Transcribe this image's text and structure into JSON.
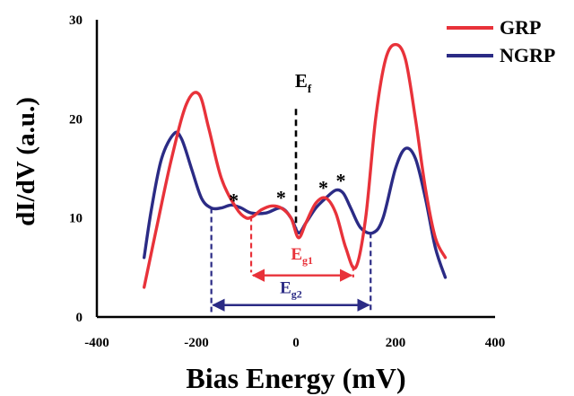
{
  "chart_data": {
    "type": "line",
    "title": "",
    "xlabel": "Bias Energy (mV)",
    "ylabel": "dI/dV (a.u.)",
    "xlim": [
      -400,
      400
    ],
    "ylim": [
      0,
      30
    ],
    "xticks": [
      "-400",
      "-200",
      "0",
      "200",
      "400"
    ],
    "yticks": [
      "0",
      "10",
      "20",
      "30"
    ],
    "legend_position": "top-right",
    "series": [
      {
        "name": "GRP",
        "color": "#e8323a",
        "x": [
          -305,
          -280,
          -250,
          -220,
          -195,
          -175,
          -150,
          -120,
          -100,
          -85,
          -70,
          -50,
          -30,
          -10,
          5,
          20,
          40,
          60,
          80,
          100,
          120,
          140,
          160,
          180,
          200,
          220,
          240,
          260,
          280,
          300
        ],
        "y": [
          3,
          9,
          16,
          21.5,
          22.5,
          19,
          14,
          11,
          10,
          10.2,
          10.8,
          11.2,
          11,
          10,
          8,
          9.5,
          11.5,
          12,
          10.5,
          7,
          5,
          10,
          20,
          26,
          27.5,
          26,
          20,
          13,
          8,
          6
        ]
      },
      {
        "name": "NGRP",
        "color": "#2b2b85",
        "x": [
          -305,
          -290,
          -270,
          -245,
          -230,
          -210,
          -190,
          -170,
          -150,
          -130,
          -110,
          -90,
          -60,
          -30,
          -10,
          5,
          20,
          40,
          60,
          80,
          95,
          110,
          130,
          155,
          175,
          200,
          220,
          240,
          260,
          280,
          300
        ],
        "y": [
          6,
          11,
          16,
          18.5,
          18,
          15,
          12,
          11,
          11,
          11.3,
          11,
          10.5,
          10.5,
          11,
          10,
          8.5,
          9.5,
          11,
          12,
          12.8,
          12.5,
          11,
          9,
          8.5,
          10,
          15,
          17,
          16,
          12,
          7,
          4
        ]
      }
    ],
    "annotations": {
      "ef_label": "E",
      "ef_sub": "f",
      "eg1_label": "E",
      "eg1_sub": "g1",
      "eg2_label": "E",
      "eg2_sub": "g2",
      "stars": [
        "*",
        "*",
        "*",
        "*"
      ],
      "eg1_range": [
        -90,
        115
      ],
      "eg2_range": [
        -170,
        150
      ],
      "star_positions": [
        [
          -125,
          12
        ],
        [
          -30,
          12.3
        ],
        [
          55,
          13.3
        ],
        [
          90,
          14
        ]
      ]
    }
  }
}
